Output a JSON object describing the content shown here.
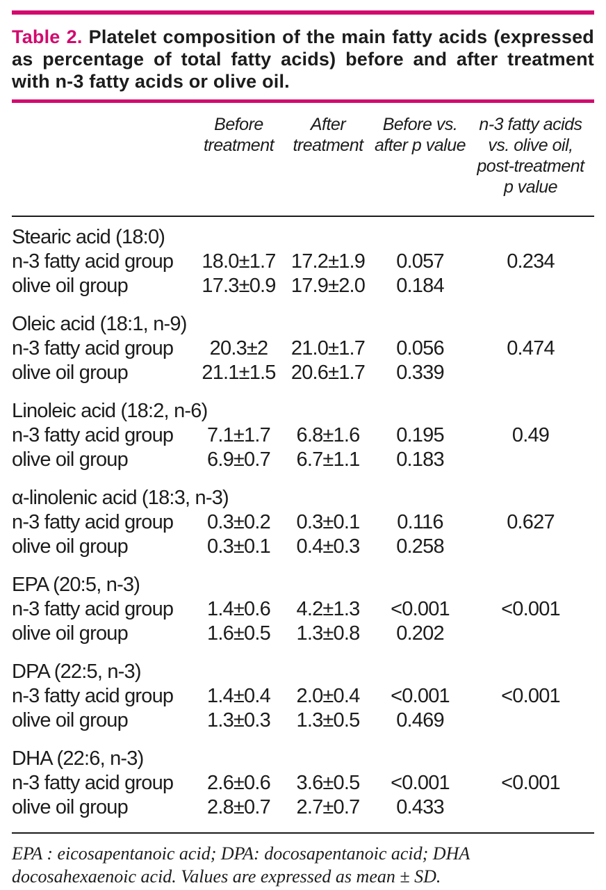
{
  "colors": {
    "accent": "#d20a6e",
    "text": "#1c1c1c"
  },
  "title": {
    "label": "Table 2.",
    "text": "Platelet composition of the main fatty acids (expressed as percentage of total fatty acids) before and after treatment with n-3 fatty acids or olive oil."
  },
  "table": {
    "headers": [
      "",
      "Before\ntreatment",
      "After\ntreatment",
      "Before vs.\nafter p value",
      "n-3 fatty acids\nvs. olive oil,\npost-treatment\np value"
    ],
    "sections": [
      {
        "heading": "Stearic acid (18:0)",
        "rows": [
          {
            "label": "n-3 fatty acid group",
            "before": "18.0±1.7",
            "after": "17.2±1.9",
            "p_before_after": "0.057",
            "p_groups": "0.234"
          },
          {
            "label": "olive oil group",
            "before": "17.3±0.9",
            "after": "17.9±2.0",
            "p_before_after": "0.184",
            "p_groups": ""
          }
        ]
      },
      {
        "heading": "Oleic acid (18:1, n-9)",
        "rows": [
          {
            "label": "n-3 fatty acid group",
            "before": "20.3±2",
            "after": "21.0±1.7",
            "p_before_after": "0.056",
            "p_groups": "0.474"
          },
          {
            "label": "olive oil group",
            "before": "21.1±1.5",
            "after": "20.6±1.7",
            "p_before_after": "0.339",
            "p_groups": ""
          }
        ]
      },
      {
        "heading": "Linoleic acid (18:2, n-6)",
        "rows": [
          {
            "label": "n-3 fatty acid group",
            "before": "7.1±1.7",
            "after": "6.8±1.6",
            "p_before_after": "0.195",
            "p_groups": "0.49"
          },
          {
            "label": "olive oil group",
            "before": "6.9±0.7",
            "after": "6.7±1.1",
            "p_before_after": "0.183",
            "p_groups": ""
          }
        ]
      },
      {
        "heading": "α-linolenic acid (18:3, n-3)",
        "rows": [
          {
            "label": "n-3 fatty acid group",
            "before": "0.3±0.2",
            "after": "0.3±0.1",
            "p_before_after": "0.116",
            "p_groups": "0.627"
          },
          {
            "label": "olive oil group",
            "before": "0.3±0.1",
            "after": "0.4±0.3",
            "p_before_after": "0.258",
            "p_groups": ""
          }
        ]
      },
      {
        "heading": "EPA (20:5, n-3)",
        "rows": [
          {
            "label": "n-3 fatty acid group",
            "before": "1.4±0.6",
            "after": "4.2±1.3",
            "p_before_after": "<0.001",
            "p_groups": "<0.001"
          },
          {
            "label": "olive oil group",
            "before": "1.6±0.5",
            "after": "1.3±0.8",
            "p_before_after": "0.202",
            "p_groups": ""
          }
        ]
      },
      {
        "heading": "DPA (22:5, n-3)",
        "rows": [
          {
            "label": "n-3 fatty acid group",
            "before": "1.4±0.4",
            "after": "2.0±0.4",
            "p_before_after": "<0.001",
            "p_groups": "<0.001"
          },
          {
            "label": "olive oil group",
            "before": "1.3±0.3",
            "after": "1.3±0.5",
            "p_before_after": "0.469",
            "p_groups": ""
          }
        ]
      },
      {
        "heading": "DHA (22:6, n-3)",
        "rows": [
          {
            "label": "n-3 fatty acid group",
            "before": "2.6±0.6",
            "after": "3.6±0.5",
            "p_before_after": "<0.001",
            "p_groups": "<0.001"
          },
          {
            "label": "olive oil group",
            "before": "2.8±0.7",
            "after": "2.7±0.7",
            "p_before_after": "0.433",
            "p_groups": ""
          }
        ]
      }
    ]
  },
  "footnote": "EPA : eicosapentanoic acid; DPA: docosapentanoic acid; DHA docosahexaenoic acid.  Values are expressed as mean ± SD."
}
